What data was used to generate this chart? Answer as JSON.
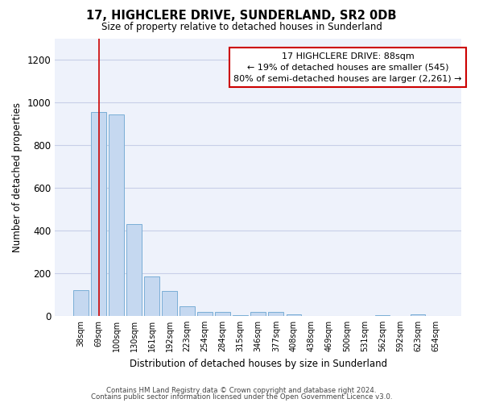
{
  "title": "17, HIGHCLERE DRIVE, SUNDERLAND, SR2 0DB",
  "subtitle": "Size of property relative to detached houses in Sunderland",
  "xlabel": "Distribution of detached houses by size in Sunderland",
  "ylabel": "Number of detached properties",
  "categories": [
    "38sqm",
    "69sqm",
    "100sqm",
    "130sqm",
    "161sqm",
    "192sqm",
    "223sqm",
    "254sqm",
    "284sqm",
    "315sqm",
    "346sqm",
    "377sqm",
    "408sqm",
    "438sqm",
    "469sqm",
    "500sqm",
    "531sqm",
    "562sqm",
    "592sqm",
    "623sqm",
    "654sqm"
  ],
  "values": [
    120,
    955,
    945,
    430,
    185,
    115,
    45,
    20,
    18,
    2,
    18,
    18,
    8,
    0,
    0,
    0,
    0,
    5,
    0,
    8,
    0
  ],
  "bar_color": "#c5d8f0",
  "bar_edge_color": "#7aaed6",
  "vline_x": 1.0,
  "vline_color": "#cc0000",
  "annotation_text": "17 HIGHCLERE DRIVE: 88sqm\n← 19% of detached houses are smaller (545)\n80% of semi-detached houses are larger (2,261) →",
  "annotation_box_color": "#ffffff",
  "annotation_box_edge": "#cc0000",
  "ylim": [
    0,
    1300
  ],
  "yticks": [
    0,
    200,
    400,
    600,
    800,
    1000,
    1200
  ],
  "footer1": "Contains HM Land Registry data © Crown copyright and database right 2024.",
  "footer2": "Contains public sector information licensed under the Open Government Licence v3.0.",
  "bg_color": "#eef2fb",
  "grid_color": "#c8cfe8"
}
